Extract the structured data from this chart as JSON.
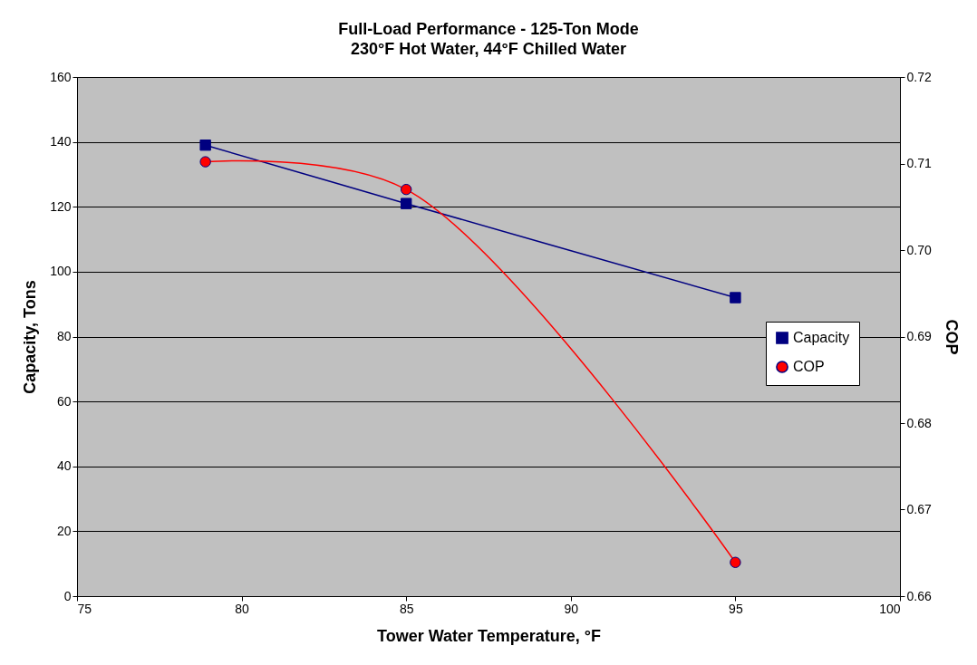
{
  "chart_data": {
    "type": "line",
    "title": "Full-Load Performance - 125-Ton Mode",
    "subtitle": "230°F Hot Water, 44°F Chilled Water",
    "xlabel": "Tower Water Temperature, °F",
    "ylabel": "Capacity, Tons",
    "y2label": "COP",
    "x": [
      78.9,
      85,
      95
    ],
    "series": [
      {
        "name": "Capacity",
        "color": "#000080",
        "marker": "square",
        "values": [
          139,
          121,
          92
        ]
      },
      {
        "name": "COP",
        "color": "#ff0000",
        "marker": "circle",
        "axis": "y2",
        "values": [
          0.7102,
          0.707,
          0.6639
        ]
      }
    ],
    "xlim": [
      75,
      100
    ],
    "xticks": [
      75,
      80,
      85,
      90,
      95,
      100
    ],
    "ylim": [
      0,
      160
    ],
    "yticks": [
      0,
      20,
      40,
      60,
      80,
      100,
      120,
      140,
      160
    ],
    "y2lim": [
      0.66,
      0.72
    ],
    "y2ticks": [
      {
        "value": 0.66,
        "label": "0.66"
      },
      {
        "value": 0.67,
        "label": "0.67"
      },
      {
        "value": 0.68,
        "label": "0.68"
      },
      {
        "value": 0.69,
        "label": "0.69"
      },
      {
        "value": 0.7,
        "label": "0.70"
      },
      {
        "value": 0.71,
        "label": "0.71"
      },
      {
        "value": 0.72,
        "label": "0.72"
      }
    ],
    "grid": "y",
    "legend": "right",
    "line_style": "solid"
  }
}
